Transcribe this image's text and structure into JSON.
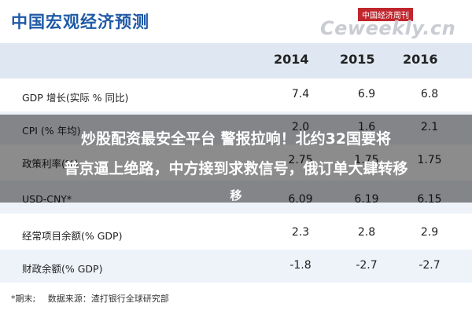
{
  "title": "中国宏观经济预测",
  "watermark": {
    "tag": "中国经济周刊",
    "text": "Ceweekly.cn"
  },
  "table": {
    "columns": [
      "2014",
      "2015",
      "2016"
    ],
    "rows": [
      {
        "label": "GDP 增长(实际 % 同比)",
        "values": [
          "7.4",
          "6.9",
          "6.8"
        ]
      },
      {
        "label": "CPI (% 年均)",
        "values": [
          "2.0",
          "1.6",
          "2.1"
        ]
      },
      {
        "label": "政策利率(%)",
        "values": [
          "2.75",
          "1.75",
          "1.75"
        ]
      },
      {
        "label": "USD-CNY*",
        "values": [
          "6.09",
          "6.19",
          "6.15"
        ]
      },
      {
        "label": "经常项目余额(% GDP)",
        "values": [
          "2.3",
          "2.8",
          "2.9"
        ]
      },
      {
        "label": "财政余额(% GDP)",
        "values": [
          "-1.8",
          "-2.7",
          "-2.7"
        ]
      }
    ]
  },
  "footnote": {
    "period": "*期末;",
    "source": "数据来源：渣打银行全球研究部"
  },
  "banner": {
    "line1": "炒股配资最安全平台 警报拉响！北约32国要将",
    "line2": "普京逼上绝路，中方接到求救信号，俄订单大肆转移",
    "line3": "移"
  },
  "colors": {
    "title": "#1f5aa6",
    "header_band": "#dfe7f3",
    "alt_row": "#eef3f9",
    "watermark_tag": "#c0262d"
  }
}
